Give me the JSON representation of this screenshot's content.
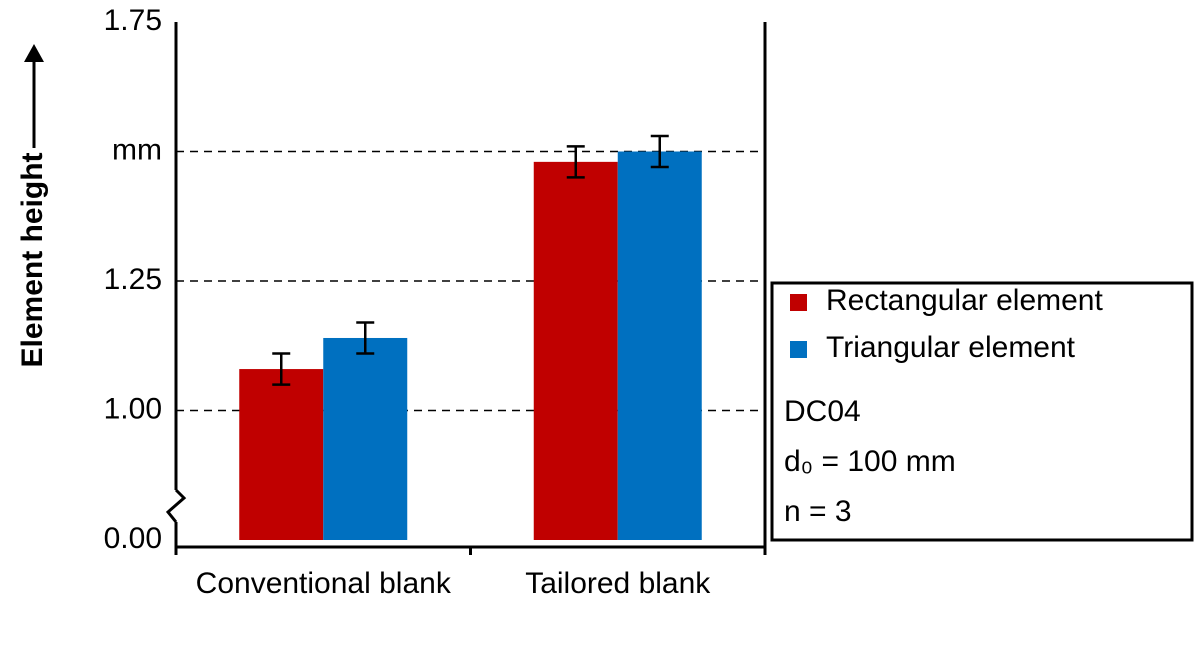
{
  "chart_data": {
    "type": "bar",
    "y_label": "Element height",
    "categories": [
      "Conventional blank",
      "Tailored blank"
    ],
    "series": [
      {
        "name": "Rectangular element",
        "color": "#c00000",
        "values": [
          1.08,
          1.48
        ],
        "errors": [
          0.03,
          0.03
        ]
      },
      {
        "name": "Triangular element",
        "color": "#0070c0",
        "values": [
          1.14,
          1.5
        ],
        "errors": [
          0.03,
          0.03
        ]
      }
    ],
    "ylim": [
      0,
      1.75
    ],
    "yticks": [
      {
        "value": 0,
        "label": "0.00"
      },
      {
        "value": 1,
        "label": "1.00"
      },
      1.25,
      {
        "value": 1.5,
        "label": "mm"
      },
      1.75
    ],
    "axis_break": true,
    "grid": true,
    "legend": "right",
    "annotations": [
      "DC04",
      "d₀ = 100 mm",
      "n = 3"
    ]
  }
}
